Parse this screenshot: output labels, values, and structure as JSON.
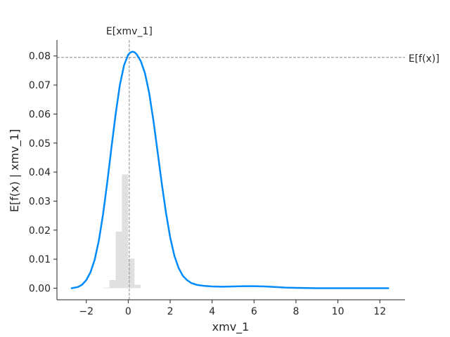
{
  "chart_data": {
    "type": "line",
    "xlabel": "xmv_1",
    "ylabel": "E[f(x) | xmv_1]",
    "xlim": [
      -3.4,
      13.2
    ],
    "ylim": [
      -0.004,
      0.0855
    ],
    "x_ticks": [
      -2,
      0,
      2,
      4,
      6,
      8,
      10,
      12
    ],
    "y_ticks": [
      0.0,
      0.01,
      0.02,
      0.03,
      0.04,
      0.05,
      0.06,
      0.07,
      0.08
    ],
    "x_tick_labels": [
      "−2",
      "0",
      "2",
      "4",
      "6",
      "8",
      "10",
      "12"
    ],
    "y_tick_labels": [
      "0.00",
      "0.01",
      "0.02",
      "0.03",
      "0.04",
      "0.05",
      "0.06",
      "0.07",
      "0.08"
    ],
    "line_color": "#008bfb",
    "hist_color": "#e0e0e0",
    "reference_lines": {
      "vertical": {
        "x": 0.05,
        "label": "E[xmv_1]"
      },
      "horizontal": {
        "y": 0.0795,
        "label": "E[f(x)]"
      }
    },
    "series": [
      {
        "x": [
          -2.7,
          -2.4,
          -2.2,
          -2.0,
          -1.8,
          -1.6,
          -1.4,
          -1.2,
          -1.0,
          -0.8,
          -0.6,
          -0.4,
          -0.2,
          0.0,
          0.1,
          0.2,
          0.3,
          0.4,
          0.6,
          0.8,
          1.0,
          1.2,
          1.4,
          1.6,
          1.8,
          2.0,
          2.2,
          2.4,
          2.6,
          2.8,
          3.0,
          3.3,
          3.6,
          4.0,
          4.5,
          5.0,
          5.5,
          6.0,
          6.5,
          7.0,
          7.5,
          8.0,
          9.0,
          10.0,
          11.0,
          12.0,
          12.4
        ],
        "values": [
          0.0,
          0.0004,
          0.0012,
          0.0028,
          0.0055,
          0.0098,
          0.0165,
          0.0255,
          0.0365,
          0.0485,
          0.06,
          0.07,
          0.0768,
          0.0805,
          0.0812,
          0.0815,
          0.0813,
          0.0806,
          0.0782,
          0.074,
          0.0672,
          0.0578,
          0.047,
          0.036,
          0.026,
          0.0175,
          0.0112,
          0.007,
          0.0043,
          0.0028,
          0.0018,
          0.0011,
          0.0008,
          0.0006,
          0.0005,
          0.0006,
          0.0007,
          0.0007,
          0.0006,
          0.0004,
          0.0002,
          0.0001,
          0.0,
          0.0,
          0.0,
          0.0,
          0.0
        ]
      }
    ],
    "histogram": {
      "bin_width": 0.3,
      "bin_starts": [
        -1.2,
        -0.9,
        -0.6,
        -0.3,
        0.0,
        0.3
      ],
      "heights": [
        0.0002,
        0.0028,
        0.0195,
        0.0392,
        0.0102,
        0.0012
      ]
    }
  }
}
